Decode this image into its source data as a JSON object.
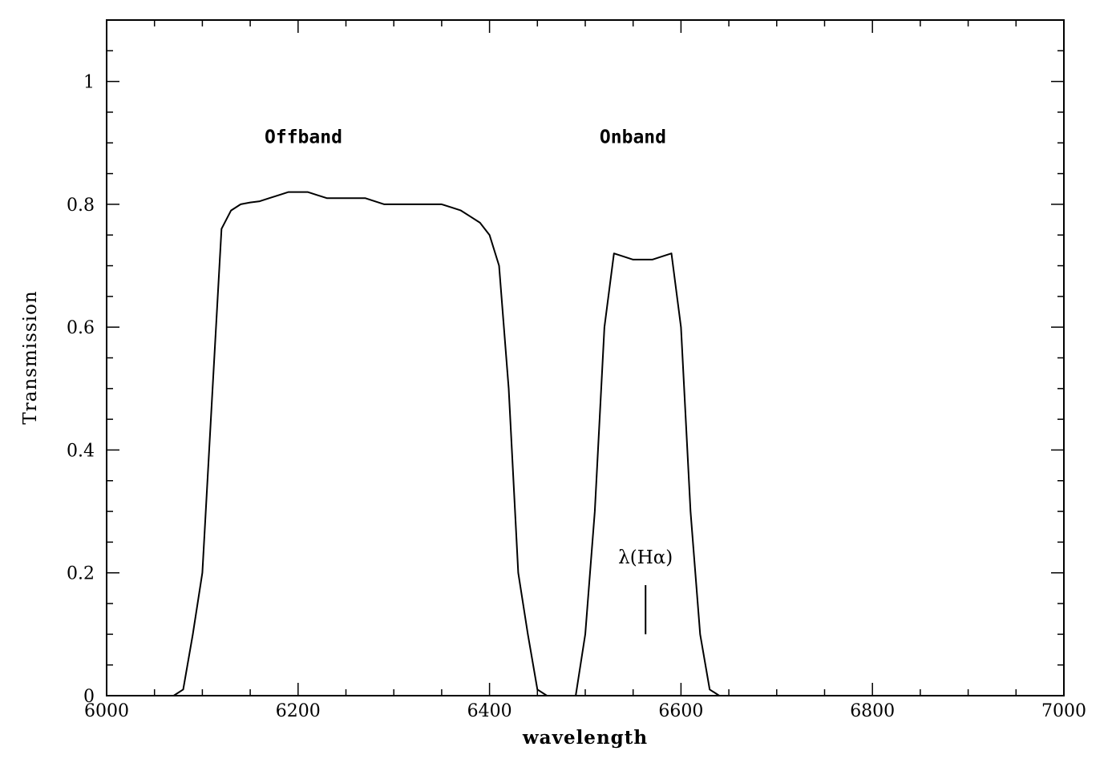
{
  "chart_data": {
    "type": "line",
    "xlabel": "wavelength",
    "ylabel": "Transmission",
    "xlim": [
      6000,
      7000
    ],
    "ylim": [
      0,
      1.1
    ],
    "xticks": [
      6000,
      6200,
      6400,
      6600,
      6800,
      7000
    ],
    "yticks": [
      0,
      0.2,
      0.4,
      0.6,
      0.8,
      1
    ],
    "ytick_labels": [
      "0",
      "0.2",
      "0.4",
      "0.6",
      "0.8",
      "1"
    ],
    "grid": false,
    "series": [
      {
        "name": "Offband",
        "x": [
          6070,
          6080,
          6090,
          6100,
          6110,
          6120,
          6130,
          6140,
          6150,
          6160,
          6170,
          6180,
          6190,
          6200,
          6210,
          6220,
          6230,
          6240,
          6250,
          6260,
          6270,
          6280,
          6290,
          6300,
          6310,
          6320,
          6330,
          6340,
          6350,
          6360,
          6370,
          6380,
          6390,
          6400,
          6410,
          6420,
          6430,
          6440,
          6450,
          6460
        ],
        "y": [
          0,
          0.01,
          0.1,
          0.2,
          0.48,
          0.76,
          0.79,
          0.8,
          0.803,
          0.805,
          0.81,
          0.815,
          0.82,
          0.82,
          0.82,
          0.815,
          0.81,
          0.81,
          0.81,
          0.81,
          0.81,
          0.805,
          0.8,
          0.8,
          0.8,
          0.8,
          0.8,
          0.8,
          0.8,
          0.795,
          0.79,
          0.78,
          0.77,
          0.75,
          0.7,
          0.5,
          0.2,
          0.1,
          0.01,
          0
        ]
      },
      {
        "name": "Onband",
        "x": [
          6470,
          6490,
          6500,
          6510,
          6520,
          6530,
          6540,
          6550,
          6560,
          6570,
          6580,
          6590,
          6600,
          6610,
          6620,
          6630,
          6640
        ],
        "y": [
          0,
          0,
          0.1,
          0.3,
          0.6,
          0.72,
          0.715,
          0.71,
          0.71,
          0.71,
          0.715,
          0.72,
          0.6,
          0.3,
          0.1,
          0.01,
          0
        ]
      }
    ],
    "annotations": [
      {
        "text": "Offband",
        "x": 6165,
        "y": 0.9
      },
      {
        "text": "Onband",
        "x": 6515,
        "y": 0.9
      },
      {
        "text": "λ(Hα)",
        "x": 6563,
        "y": 0.215
      }
    ],
    "marker_line": {
      "x": 6563,
      "y": [
        0.1,
        0.18
      ]
    }
  }
}
